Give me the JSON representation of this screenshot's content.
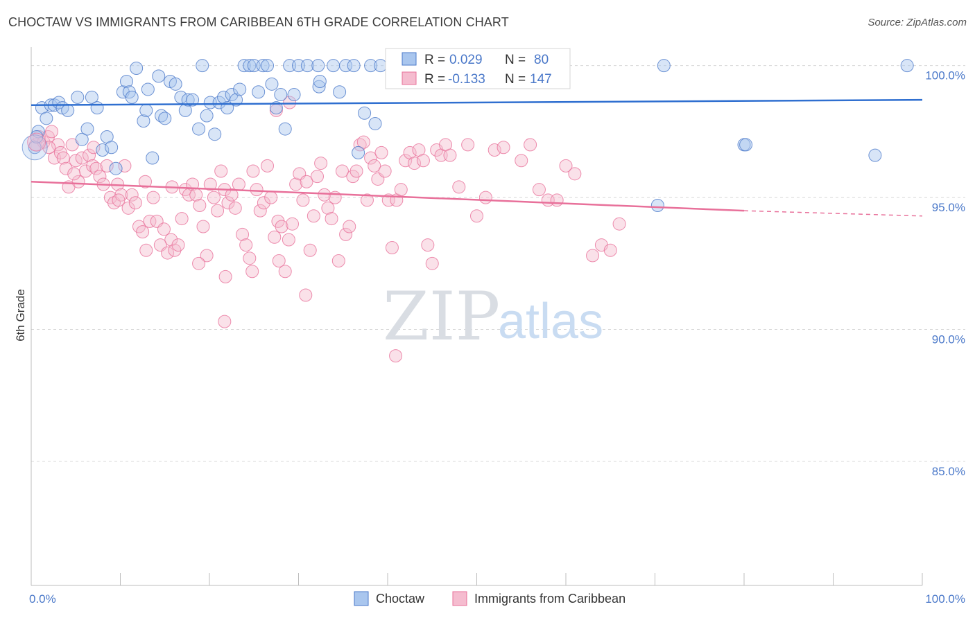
{
  "title": "CHOCTAW VS IMMIGRANTS FROM CARIBBEAN 6TH GRADE CORRELATION CHART",
  "source": "Source: ZipAtlas.com",
  "watermark": {
    "zip": "ZIP",
    "atlas": "atlas"
  },
  "colors": {
    "blue": "#4a78c9",
    "blue_fill": "#a9c6ee",
    "blue_line": "#2f6fd0",
    "pink": "#e8709a",
    "pink_fill": "#f5bccf",
    "grid": "#d8d8d8"
  },
  "stats": [
    {
      "r_label": "R =",
      "r_value": "0.029",
      "n_label": "N =",
      "n_value": "80"
    },
    {
      "r_label": "R =",
      "r_value": "-0.133",
      "n_label": "N =",
      "n_value": "147"
    }
  ],
  "legend": [
    {
      "label": "Choctaw"
    },
    {
      "label": "Immigrants from Caribbean"
    }
  ],
  "chart_data": {
    "type": "scatter",
    "xlabel": "",
    "ylabel": "6th Grade",
    "xlim": [
      0,
      100
    ],
    "ylim": [
      80.3,
      100.7
    ],
    "x_tick_labels": [
      "0.0%",
      "100.0%"
    ],
    "y_ticks": [
      85,
      90,
      95,
      100
    ],
    "y_tick_labels": [
      "85.0%",
      "90.0%",
      "95.0%",
      "100.0%"
    ],
    "grid": true,
    "legend_position": "bottom-center",
    "series": [
      {
        "name": "Choctaw",
        "trend": {
          "x": [
            0,
            100
          ],
          "y": [
            98.5,
            98.7
          ]
        },
        "points": [
          [
            0.4,
            96.9
          ],
          [
            0.8,
            97.5
          ],
          [
            1.2,
            98.4
          ],
          [
            1.7,
            98.0
          ],
          [
            2.2,
            98.5
          ],
          [
            2.6,
            98.5
          ],
          [
            3.1,
            98.6
          ],
          [
            3.5,
            98.4
          ],
          [
            4.1,
            98.3
          ],
          [
            5.2,
            98.8
          ],
          [
            5.7,
            97.2
          ],
          [
            6.3,
            97.6
          ],
          [
            6.8,
            98.8
          ],
          [
            7.4,
            98.4
          ],
          [
            8.0,
            96.8
          ],
          [
            8.5,
            97.3
          ],
          [
            9.0,
            96.9
          ],
          [
            9.5,
            96.1
          ],
          [
            10.3,
            99.0
          ],
          [
            10.7,
            99.4
          ],
          [
            11.0,
            99.0
          ],
          [
            11.3,
            98.8
          ],
          [
            11.8,
            99.9
          ],
          [
            12.6,
            97.9
          ],
          [
            12.9,
            98.3
          ],
          [
            13.1,
            99.1
          ],
          [
            13.6,
            96.5
          ],
          [
            14.3,
            99.6
          ],
          [
            14.6,
            98.1
          ],
          [
            15.0,
            98.0
          ],
          [
            15.6,
            99.4
          ],
          [
            16.2,
            99.3
          ],
          [
            16.8,
            98.8
          ],
          [
            17.3,
            98.3
          ],
          [
            17.6,
            98.7
          ],
          [
            18.1,
            98.7
          ],
          [
            18.8,
            97.6
          ],
          [
            19.2,
            100.0
          ],
          [
            19.7,
            98.1
          ],
          [
            20.1,
            98.6
          ],
          [
            20.6,
            97.4
          ],
          [
            21.1,
            98.6
          ],
          [
            21.6,
            98.8
          ],
          [
            22.0,
            98.4
          ],
          [
            22.5,
            98.9
          ],
          [
            23.0,
            98.7
          ],
          [
            23.4,
            99.1
          ],
          [
            23.9,
            100.0
          ],
          [
            24.5,
            100.0
          ],
          [
            25.0,
            100.0
          ],
          [
            25.5,
            99.0
          ],
          [
            26.0,
            100.0
          ],
          [
            26.5,
            100.0
          ],
          [
            27.0,
            99.3
          ],
          [
            27.5,
            98.4
          ],
          [
            28.0,
            98.9
          ],
          [
            28.5,
            97.6
          ],
          [
            29.0,
            100.0
          ],
          [
            29.5,
            98.9
          ],
          [
            30.0,
            100.0
          ],
          [
            31.0,
            100.0
          ],
          [
            32.2,
            100.0
          ],
          [
            32.3,
            99.2
          ],
          [
            32.4,
            99.4
          ],
          [
            33.9,
            100.0
          ],
          [
            34.6,
            99.0
          ],
          [
            35.3,
            100.0
          ],
          [
            36.2,
            100.0
          ],
          [
            36.7,
            96.7
          ],
          [
            37.4,
            98.2
          ],
          [
            38.1,
            100.0
          ],
          [
            38.6,
            97.8
          ],
          [
            39.2,
            100.0
          ],
          [
            70.3,
            94.7
          ],
          [
            71.0,
            100.0
          ],
          [
            80.0,
            97.0
          ],
          [
            80.2,
            97.0
          ],
          [
            94.7,
            96.6
          ],
          [
            98.3,
            100.0
          ],
          [
            0.6,
            97.3
          ]
        ]
      },
      {
        "name": "Immigrants from Caribbean",
        "trend": {
          "x": [
            0,
            80
          ],
          "y": [
            95.6,
            94.5
          ]
        },
        "trend_dashed": {
          "x": [
            80,
            100
          ],
          "y": [
            94.5,
            94.3
          ]
        },
        "points": [
          [
            0.5,
            97.0
          ],
          [
            0.9,
            97.3
          ],
          [
            1.4,
            97.1
          ],
          [
            1.9,
            97.3
          ],
          [
            2.3,
            97.5
          ],
          [
            2.6,
            96.5
          ],
          [
            3.0,
            97.0
          ],
          [
            3.3,
            96.7
          ],
          [
            3.6,
            96.5
          ],
          [
            3.9,
            96.1
          ],
          [
            4.2,
            95.4
          ],
          [
            4.6,
            97.0
          ],
          [
            5.0,
            96.4
          ],
          [
            5.3,
            95.6
          ],
          [
            5.7,
            96.5
          ],
          [
            6.1,
            96.0
          ],
          [
            6.5,
            96.6
          ],
          [
            6.9,
            96.2
          ],
          [
            7.3,
            96.1
          ],
          [
            7.7,
            95.8
          ],
          [
            8.1,
            95.5
          ],
          [
            8.5,
            96.2
          ],
          [
            8.9,
            95.0
          ],
          [
            9.3,
            94.8
          ],
          [
            9.7,
            95.5
          ],
          [
            10.1,
            95.1
          ],
          [
            10.5,
            96.2
          ],
          [
            10.9,
            94.6
          ],
          [
            11.3,
            95.1
          ],
          [
            11.7,
            94.8
          ],
          [
            12.1,
            93.9
          ],
          [
            12.5,
            93.7
          ],
          [
            12.9,
            93.0
          ],
          [
            13.3,
            94.1
          ],
          [
            13.7,
            95.0
          ],
          [
            14.1,
            94.1
          ],
          [
            14.5,
            93.2
          ],
          [
            14.9,
            93.8
          ],
          [
            15.3,
            92.9
          ],
          [
            15.7,
            93.4
          ],
          [
            16.1,
            93.0
          ],
          [
            16.5,
            93.2
          ],
          [
            16.9,
            94.2
          ],
          [
            17.3,
            95.3
          ],
          [
            17.7,
            95.1
          ],
          [
            18.1,
            95.5
          ],
          [
            18.5,
            95.1
          ],
          [
            18.9,
            94.7
          ],
          [
            19.3,
            93.9
          ],
          [
            19.7,
            92.8
          ],
          [
            20.1,
            95.5
          ],
          [
            20.5,
            95.0
          ],
          [
            20.9,
            94.5
          ],
          [
            21.3,
            96.0
          ],
          [
            21.7,
            95.3
          ],
          [
            22.1,
            94.8
          ],
          [
            22.5,
            95.1
          ],
          [
            22.9,
            94.6
          ],
          [
            23.3,
            95.5
          ],
          [
            23.7,
            93.6
          ],
          [
            24.1,
            93.2
          ],
          [
            24.5,
            92.7
          ],
          [
            24.9,
            96.0
          ],
          [
            25.3,
            95.3
          ],
          [
            25.7,
            94.5
          ],
          [
            26.1,
            94.8
          ],
          [
            26.5,
            96.2
          ],
          [
            26.9,
            95.0
          ],
          [
            27.3,
            93.5
          ],
          [
            27.7,
            94.1
          ],
          [
            28.1,
            93.9
          ],
          [
            28.5,
            92.2
          ],
          [
            28.9,
            93.4
          ],
          [
            29.3,
            94.0
          ],
          [
            29.7,
            95.5
          ],
          [
            30.1,
            95.9
          ],
          [
            30.5,
            94.9
          ],
          [
            30.9,
            95.6
          ],
          [
            31.3,
            93.0
          ],
          [
            31.7,
            94.3
          ],
          [
            32.1,
            95.8
          ],
          [
            32.5,
            96.3
          ],
          [
            32.9,
            95.1
          ],
          [
            33.3,
            94.6
          ],
          [
            33.7,
            94.2
          ],
          [
            34.1,
            95.0
          ],
          [
            34.5,
            92.6
          ],
          [
            34.9,
            96.0
          ],
          [
            35.3,
            93.6
          ],
          [
            35.7,
            93.9
          ],
          [
            36.1,
            95.8
          ],
          [
            36.5,
            96.0
          ],
          [
            36.9,
            97.0
          ],
          [
            37.3,
            97.1
          ],
          [
            37.7,
            94.9
          ],
          [
            38.1,
            96.5
          ],
          [
            38.5,
            96.2
          ],
          [
            38.9,
            95.7
          ],
          [
            39.3,
            96.7
          ],
          [
            39.7,
            96.0
          ],
          [
            40.1,
            94.9
          ],
          [
            40.5,
            93.1
          ],
          [
            41.0,
            94.9
          ],
          [
            41.5,
            95.3
          ],
          [
            42.0,
            96.4
          ],
          [
            42.5,
            96.7
          ],
          [
            43.0,
            96.3
          ],
          [
            43.5,
            96.8
          ],
          [
            44.0,
            96.4
          ],
          [
            44.5,
            93.2
          ],
          [
            45.0,
            92.5
          ],
          [
            45.5,
            96.8
          ],
          [
            46.0,
            96.6
          ],
          [
            46.5,
            97.0
          ],
          [
            47.0,
            96.6
          ],
          [
            48.0,
            95.4
          ],
          [
            49.0,
            97.0
          ],
          [
            50.0,
            94.3
          ],
          [
            51.0,
            95.0
          ],
          [
            52.0,
            96.8
          ],
          [
            53.0,
            96.9
          ],
          [
            55.0,
            96.4
          ],
          [
            56.0,
            97.0
          ],
          [
            57.0,
            95.3
          ],
          [
            58.0,
            94.9
          ],
          [
            59.0,
            94.9
          ],
          [
            60.0,
            96.2
          ],
          [
            61.0,
            95.9
          ],
          [
            63.0,
            92.8
          ],
          [
            64.0,
            93.2
          ],
          [
            65.0,
            93.0
          ],
          [
            66.0,
            94.0
          ],
          [
            2.0,
            96.9
          ],
          [
            4.8,
            95.9
          ],
          [
            7.0,
            96.9
          ],
          [
            9.8,
            94.9
          ],
          [
            12.8,
            95.6
          ],
          [
            15.8,
            95.4
          ],
          [
            18.8,
            92.5
          ],
          [
            21.8,
            92.0
          ],
          [
            24.8,
            92.2
          ],
          [
            27.8,
            92.6
          ],
          [
            30.8,
            91.3
          ],
          [
            21.7,
            90.3
          ],
          [
            40.9,
            89.0
          ],
          [
            29.0,
            98.6
          ],
          [
            27.5,
            98.3
          ]
        ]
      }
    ]
  }
}
